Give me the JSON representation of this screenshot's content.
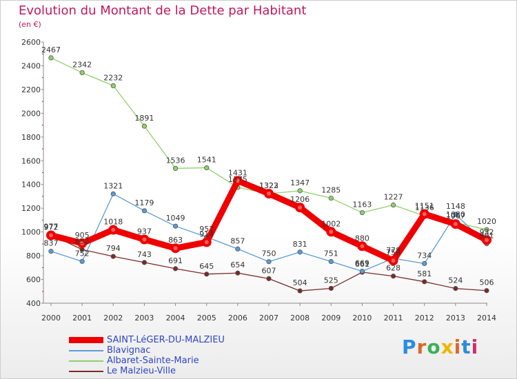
{
  "title": "Evolution du Montant de la Dette par Habitant",
  "subtitle": "(en €)",
  "logo": {
    "text": "Proxiti",
    "colors": [
      "#2a8de0",
      "#e0662a",
      "#3bb05a",
      "#f0b400",
      "#e0662a",
      "#2a8de0",
      "#d62a6a"
    ]
  },
  "chart_data": {
    "type": "line",
    "title": "Evolution du Montant de la Dette par Habitant",
    "xlabel": "",
    "ylabel": "(en €)",
    "ylim": [
      400,
      2600
    ],
    "yticks": [
      "400",
      "600",
      "800",
      "1000",
      "1200",
      "1400",
      "1600",
      "1800",
      "2000",
      "2200",
      "2400",
      "2600"
    ],
    "categories": [
      "2000",
      "2001",
      "2002",
      "2003",
      "2004",
      "2005",
      "2006",
      "2007",
      "2008",
      "2009",
      "2010",
      "2011",
      "2012",
      "2013",
      "2014"
    ],
    "grid": false,
    "legend_position": "bottom-left",
    "series": [
      {
        "name": "SAINT-LéGER-DU-MALZIEU",
        "color": "#ee0000",
        "values": [
          972,
          905,
          1018,
          937,
          863,
          914,
          1431,
          1323,
          1206,
          1002,
          880,
          759,
          1151,
          1067,
          932
        ]
      },
      {
        "name": "Blavignac",
        "color": "#5b9bd5",
        "values": [
          837,
          752,
          1321,
          1179,
          1049,
          957,
          857,
          750,
          831,
          751,
          669,
          778,
          734,
          1148,
          901
        ]
      },
      {
        "name": "Albaret-Sainte-Marie",
        "color": "#8fd16a",
        "values": [
          2467,
          2342,
          2232,
          1891,
          1536,
          1541,
          1375,
          1322,
          1347,
          1285,
          1163,
          1227,
          1136,
          1080,
          1020
        ]
      },
      {
        "name": "Le Malzieu-Ville",
        "color": "#7a2a2a",
        "values": [
          977,
          852,
          794,
          743,
          691,
          645,
          654,
          607,
          504,
          525,
          661,
          628,
          581,
          524,
          506
        ]
      }
    ]
  }
}
